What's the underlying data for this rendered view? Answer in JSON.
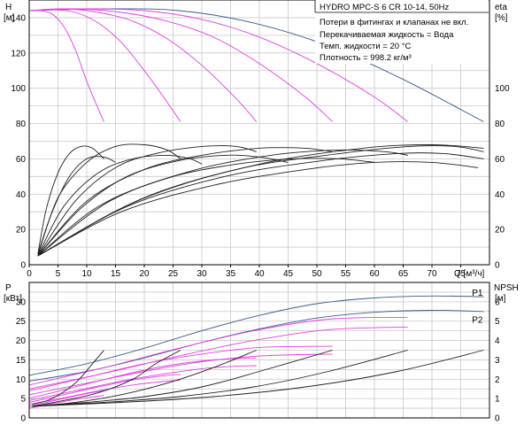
{
  "chart_data": [
    {
      "type": "line",
      "title": "HYDRO MPC-S 6 CR 10-14, 50Hz",
      "notes": [
        "Потери в фитингах и клапанах не вкл.",
        "Перекачиваемая жидкость = Вода",
        "Темп. жидкости = 20 °C",
        "Плотность = 998.2 кг/м³"
      ],
      "xlabel": "Q [м³/ч]",
      "ylabel_left": [
        "H",
        "[м]"
      ],
      "ylabel_right": [
        "eta",
        "[%]"
      ],
      "xlim": [
        0,
        80
      ],
      "ylim_left": [
        0,
        150
      ],
      "ylim_right": [
        0,
        150
      ],
      "x_ticks": [
        0,
        5,
        10,
        15,
        20,
        25,
        30,
        35,
        40,
        45,
        50,
        55,
        60,
        65,
        70,
        75
      ],
      "y_ticks_left": [
        0,
        20,
        40,
        60,
        80,
        100,
        120,
        140
      ],
      "y_ticks_right": [
        0,
        20,
        40,
        60,
        80,
        100
      ],
      "colors": {
        "qh_max": "#3a5a8a",
        "qh_reduced": "#e040e0",
        "eta": "#202020",
        "grid": "#c8c8c8"
      },
      "series": [
        {
          "role": "qh_max",
          "x": [
            0,
            13,
            26,
            39,
            52,
            65,
            79
          ],
          "y": [
            144,
            145,
            144,
            137,
            124,
            105,
            81
          ]
        },
        {
          "role": "qh",
          "x": [
            0,
            2,
            4,
            6,
            8,
            10,
            11.5,
            13
          ],
          "y": [
            144,
            144,
            142,
            135,
            122,
            104,
            92,
            81
          ]
        },
        {
          "role": "qh",
          "x": [
            0,
            4,
            8,
            12,
            16,
            20,
            24,
            26.3
          ],
          "y": [
            144,
            144.5,
            143,
            137,
            126,
            110,
            92,
            81
          ]
        },
        {
          "role": "qh",
          "x": [
            0,
            6,
            12,
            18,
            24,
            30,
            36,
            39.5
          ],
          "y": [
            144,
            145,
            143,
            138,
            128,
            113,
            94,
            81
          ]
        },
        {
          "role": "qh",
          "x": [
            0,
            8,
            16,
            24,
            32,
            40,
            48,
            52.7
          ],
          "y": [
            144,
            145,
            143,
            138,
            129,
            114,
            95,
            81
          ]
        },
        {
          "role": "qh",
          "x": [
            0,
            10,
            20,
            30,
            40,
            50,
            60,
            65.8
          ],
          "y": [
            144,
            145,
            144,
            139,
            129,
            114,
            95,
            81
          ]
        },
        {
          "role": "eta",
          "x": [
            1.5,
            3,
            5,
            7,
            9,
            11,
            13
          ],
          "y": [
            6,
            32,
            52,
            63,
            67,
            66,
            60
          ]
        },
        {
          "role": "eta",
          "x": [
            1.5,
            4,
            7,
            10,
            13,
            15
          ],
          "y": [
            6,
            30,
            50,
            60,
            61,
            58
          ]
        },
        {
          "role": "eta",
          "x": [
            1.5,
            5,
            10,
            15,
            20,
            24,
            26.3
          ],
          "y": [
            5,
            38,
            58,
            67,
            68,
            65,
            60
          ]
        },
        {
          "role": "eta",
          "x": [
            1.5,
            6,
            12,
            18,
            24,
            28,
            30
          ],
          "y": [
            5,
            33,
            52,
            60,
            62,
            60,
            57
          ]
        },
        {
          "role": "eta",
          "x": [
            1.5,
            8,
            15,
            22,
            30,
            36,
            39.5
          ],
          "y": [
            5,
            36,
            55,
            63,
            67,
            67,
            64
          ]
        },
        {
          "role": "eta",
          "x": [
            1.5,
            9,
            17,
            26,
            34,
            40,
            45
          ],
          "y": [
            5,
            32,
            50,
            59,
            62,
            61,
            58
          ]
        },
        {
          "role": "eta",
          "x": [
            1.5,
            10,
            20,
            30,
            40,
            48,
            52.7
          ],
          "y": [
            5,
            36,
            54,
            62,
            66,
            66,
            64
          ]
        },
        {
          "role": "eta",
          "x": [
            1.5,
            12,
            24,
            36,
            46,
            54,
            60
          ],
          "y": [
            5,
            33,
            49,
            57,
            60,
            60,
            58
          ]
        },
        {
          "role": "eta",
          "x": [
            1.5,
            14,
            28,
            42,
            54,
            62,
            65.8
          ],
          "y": [
            5,
            36,
            53,
            62,
            65,
            64,
            62
          ]
        },
        {
          "role": "eta",
          "x": [
            1.5,
            16,
            32,
            48,
            60,
            70,
            78
          ],
          "y": [
            5,
            30,
            45,
            54,
            58,
            58,
            55
          ]
        },
        {
          "role": "eta",
          "x": [
            1.5,
            17,
            34,
            51,
            64,
            72,
            79
          ],
          "y": [
            5,
            33,
            50,
            59,
            63,
            63,
            60
          ]
        },
        {
          "role": "eta",
          "x": [
            1.5,
            18,
            36,
            54,
            66,
            74,
            79
          ],
          "y": [
            5,
            35,
            54,
            63,
            67,
            67,
            64
          ]
        },
        {
          "role": "eta",
          "x": [
            1.5,
            20,
            40,
            58,
            70,
            79
          ],
          "y": [
            5,
            38,
            57,
            66,
            68,
            66
          ]
        }
      ]
    },
    {
      "type": "line",
      "ylabel_left": [
        "P",
        "[кВт]"
      ],
      "ylabel_right": [
        "NPSH",
        "[м]"
      ],
      "xlim": [
        0,
        80
      ],
      "ylim_left": [
        0,
        35
      ],
      "ylim_right": [
        0,
        7
      ],
      "y_ticks_left": [
        0,
        5,
        10,
        15,
        20,
        25,
        30
      ],
      "y_ticks_right": [
        0,
        1,
        2,
        3,
        4,
        5,
        6
      ],
      "colors": {
        "p_max": "#3a5a8a",
        "p_reduced": "#e040e0",
        "npsh": "#202020"
      },
      "labels": [
        {
          "text": "P1",
          "x": 78.5,
          "y": 32.5
        },
        {
          "text": "P2",
          "x": 78.5,
          "y": 25.5
        }
      ],
      "series": [
        {
          "role": "p_max",
          "name": "P1",
          "x": [
            0,
            10,
            20,
            30,
            40,
            50,
            60,
            70,
            79
          ],
          "y": [
            11,
            14,
            18,
            22.5,
            26.5,
            29.5,
            31,
            31.5,
            31.3
          ]
        },
        {
          "role": "p_max",
          "name": "P2",
          "x": [
            0,
            10,
            20,
            30,
            40,
            50,
            60,
            70,
            79
          ],
          "y": [
            9.5,
            12,
            15.5,
            19.5,
            23,
            25.8,
            27.3,
            27.8,
            27.5
          ]
        },
        {
          "role": "p_reduced",
          "x": [
            0,
            13,
            26,
            39,
            52,
            65.8
          ],
          "y": [
            8.5,
            13,
            18,
            22.5,
            25.5,
            26
          ]
        },
        {
          "role": "p_reduced",
          "x": [
            0,
            13,
            26,
            39,
            52,
            65.8
          ],
          "y": [
            7.5,
            11.5,
            16,
            20,
            22.8,
            23.5
          ]
        },
        {
          "role": "p_reduced",
          "x": [
            0,
            10,
            20,
            30,
            40,
            52.7
          ],
          "y": [
            7,
            10.5,
            14,
            16.5,
            18.2,
            18.5
          ]
        },
        {
          "role": "p_reduced",
          "x": [
            0,
            10,
            20,
            30,
            40,
            52.7
          ],
          "y": [
            6,
            9,
            12,
            14.5,
            16,
            16.5
          ]
        },
        {
          "role": "p_reduced",
          "x": [
            0,
            8,
            16,
            24,
            32,
            39.5
          ],
          "y": [
            5,
            8,
            11,
            13.5,
            15,
            15.5
          ]
        },
        {
          "role": "p_reduced",
          "x": [
            0,
            8,
            16,
            24,
            32,
            39.5
          ],
          "y": [
            4.5,
            7,
            9.5,
            11.5,
            13,
            13.5
          ]
        },
        {
          "role": "p_reduced",
          "x": [
            0,
            6,
            12,
            18,
            24,
            26.3
          ],
          "y": [
            4,
            6,
            8,
            9.8,
            11,
            11.2
          ]
        },
        {
          "role": "p_reduced",
          "x": [
            0,
            6,
            12,
            18,
            24,
            26.3
          ],
          "y": [
            3.5,
            5.2,
            7,
            8.5,
            9.5,
            9.7
          ]
        },
        {
          "role": "p_reduced",
          "x": [
            0,
            3,
            6,
            9,
            12,
            13
          ],
          "y": [
            3,
            4,
            5,
            6,
            6.8,
            7
          ]
        },
        {
          "role": "p_reduced",
          "x": [
            0,
            3,
            6,
            9,
            12,
            13
          ],
          "y": [
            2.5,
            3.4,
            4.2,
            5,
            5.6,
            5.8
          ]
        },
        {
          "role": "npsh",
          "x": [
            0.5,
            4,
            8,
            11,
            13
          ],
          "y": [
            0.7,
            1.0,
            1.8,
            2.8,
            3.5
          ]
        },
        {
          "role": "npsh",
          "x": [
            0.5,
            6,
            12,
            18,
            22,
            26.3
          ],
          "y": [
            0.6,
            0.9,
            1.3,
            2.0,
            2.8,
            3.5
          ]
        },
        {
          "role": "npsh",
          "x": [
            0.5,
            8,
            16,
            24,
            32,
            39.5
          ],
          "y": [
            0.6,
            0.8,
            1.2,
            1.8,
            2.6,
            3.5
          ]
        },
        {
          "role": "npsh",
          "x": [
            0.5,
            10,
            20,
            30,
            40,
            52.7
          ],
          "y": [
            0.6,
            0.8,
            1.1,
            1.6,
            2.4,
            3.5
          ]
        },
        {
          "role": "npsh",
          "x": [
            0.5,
            13,
            26,
            39,
            52,
            65.8
          ],
          "y": [
            0.6,
            0.8,
            1.1,
            1.6,
            2.4,
            3.5
          ]
        },
        {
          "role": "npsh",
          "x": [
            0.5,
            16,
            32,
            48,
            64,
            79
          ],
          "y": [
            0.6,
            0.8,
            1.1,
            1.6,
            2.4,
            3.5
          ]
        }
      ]
    }
  ]
}
